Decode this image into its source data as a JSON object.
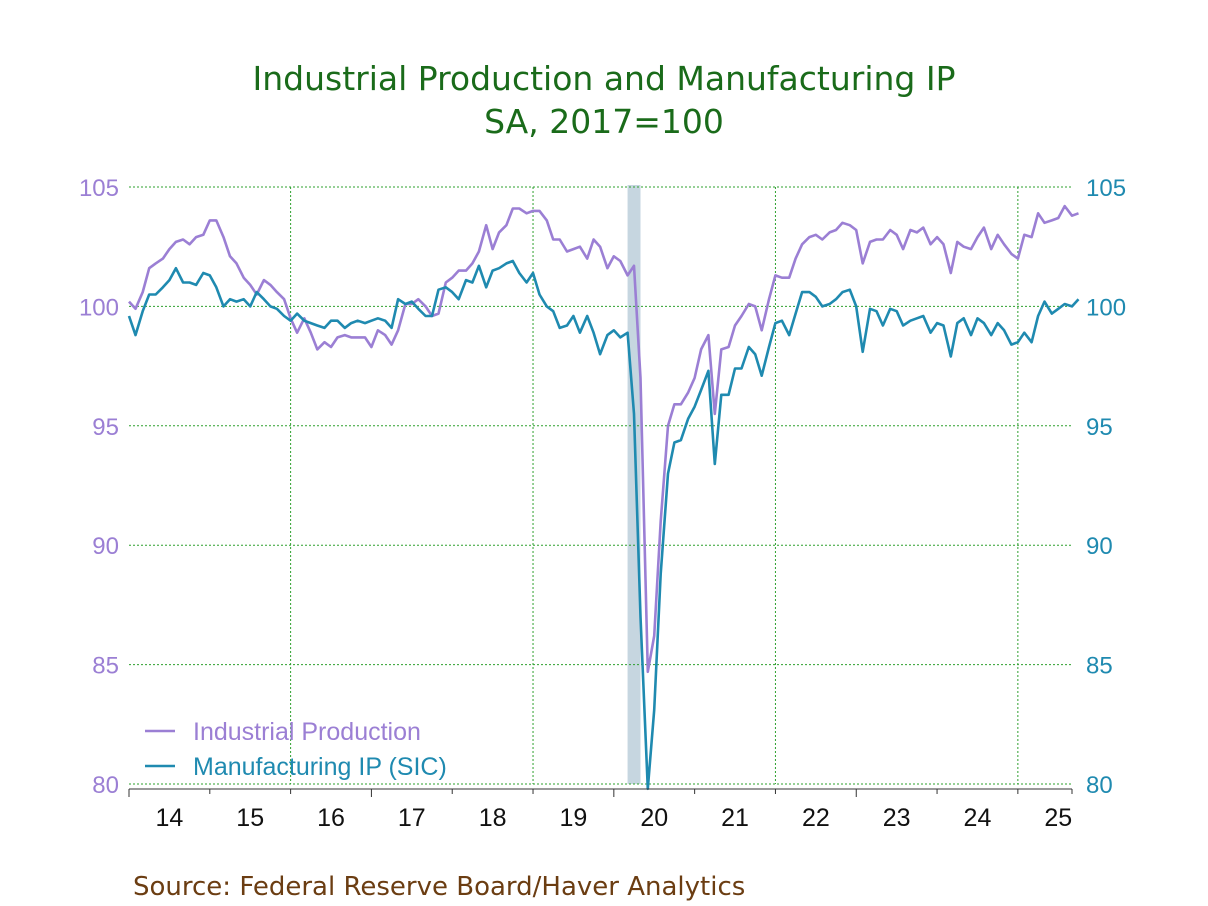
{
  "chart_data": {
    "type": "line",
    "title": "Industrial Production and Manufacturing IP",
    "subtitle": "SA, 2017=100",
    "source": "Source:  Federal Reserve Board/Haver Analytics",
    "xlim": [
      2014.0,
      2025.67
    ],
    "ylim": [
      80,
      105
    ],
    "y_ticks": [
      "80",
      "85",
      "90",
      "95",
      "100",
      "105"
    ],
    "x_ticks": [
      "14",
      "15",
      "16",
      "17",
      "18",
      "19",
      "20",
      "21",
      "22",
      "23",
      "24",
      "25"
    ],
    "grid": true,
    "legend_position": "bottom-left",
    "recession": {
      "start": 2020.17,
      "end": 2020.33
    },
    "colors": {
      "ip": "#9b7fd4",
      "mfg": "#1f8ab0",
      "grid": "#2ea02e",
      "recession": "#c6d6e0"
    },
    "series": [
      {
        "name": "Industrial Production",
        "key": "ip",
        "points": [
          [
            2014.0,
            100.2
          ],
          [
            2014.08,
            99.9
          ],
          [
            2014.17,
            100.6
          ],
          [
            2014.25,
            101.6
          ],
          [
            2014.33,
            101.8
          ],
          [
            2014.42,
            102.0
          ],
          [
            2014.5,
            102.4
          ],
          [
            2014.58,
            102.7
          ],
          [
            2014.67,
            102.8
          ],
          [
            2014.75,
            102.6
          ],
          [
            2014.83,
            102.9
          ],
          [
            2014.92,
            103.0
          ],
          [
            2015.0,
            103.6
          ],
          [
            2015.08,
            103.6
          ],
          [
            2015.17,
            102.9
          ],
          [
            2015.25,
            102.1
          ],
          [
            2015.33,
            101.8
          ],
          [
            2015.42,
            101.2
          ],
          [
            2015.5,
            100.9
          ],
          [
            2015.58,
            100.5
          ],
          [
            2015.67,
            101.1
          ],
          [
            2015.75,
            100.9
          ],
          [
            2015.83,
            100.6
          ],
          [
            2015.92,
            100.3
          ],
          [
            2016.0,
            99.5
          ],
          [
            2016.08,
            98.9
          ],
          [
            2016.17,
            99.5
          ],
          [
            2016.25,
            98.9
          ],
          [
            2016.33,
            98.2
          ],
          [
            2016.42,
            98.5
          ],
          [
            2016.5,
            98.3
          ],
          [
            2016.58,
            98.7
          ],
          [
            2016.67,
            98.8
          ],
          [
            2016.75,
            98.7
          ],
          [
            2016.83,
            98.7
          ],
          [
            2016.92,
            98.7
          ],
          [
            2017.0,
            98.3
          ],
          [
            2017.08,
            99.0
          ],
          [
            2017.17,
            98.8
          ],
          [
            2017.25,
            98.4
          ],
          [
            2017.33,
            99.0
          ],
          [
            2017.42,
            100.1
          ],
          [
            2017.5,
            100.1
          ],
          [
            2017.58,
            100.3
          ],
          [
            2017.67,
            100.0
          ],
          [
            2017.75,
            99.6
          ],
          [
            2017.83,
            99.7
          ],
          [
            2017.92,
            101.0
          ],
          [
            2018.0,
            101.2
          ],
          [
            2018.08,
            101.5
          ],
          [
            2018.17,
            101.5
          ],
          [
            2018.25,
            101.8
          ],
          [
            2018.33,
            102.3
          ],
          [
            2018.42,
            103.4
          ],
          [
            2018.5,
            102.4
          ],
          [
            2018.58,
            103.1
          ],
          [
            2018.67,
            103.4
          ],
          [
            2018.75,
            104.1
          ],
          [
            2018.83,
            104.1
          ],
          [
            2018.92,
            103.9
          ],
          [
            2019.0,
            104.0
          ],
          [
            2019.08,
            104.0
          ],
          [
            2019.17,
            103.6
          ],
          [
            2019.25,
            102.8
          ],
          [
            2019.33,
            102.8
          ],
          [
            2019.42,
            102.3
          ],
          [
            2019.5,
            102.4
          ],
          [
            2019.58,
            102.5
          ],
          [
            2019.67,
            102.0
          ],
          [
            2019.75,
            102.8
          ],
          [
            2019.83,
            102.5
          ],
          [
            2019.92,
            101.6
          ],
          [
            2020.0,
            102.1
          ],
          [
            2020.08,
            101.9
          ],
          [
            2020.17,
            101.3
          ],
          [
            2020.25,
            101.7
          ],
          [
            2020.33,
            97.0
          ],
          [
            2020.42,
            84.7
          ],
          [
            2020.5,
            86.2
          ],
          [
            2020.58,
            91.0
          ],
          [
            2020.67,
            95.0
          ],
          [
            2020.75,
            95.9
          ],
          [
            2020.83,
            95.9
          ],
          [
            2020.92,
            96.4
          ],
          [
            2021.0,
            97.0
          ],
          [
            2021.08,
            98.2
          ],
          [
            2021.17,
            98.8
          ],
          [
            2021.25,
            95.5
          ],
          [
            2021.33,
            98.2
          ],
          [
            2021.42,
            98.3
          ],
          [
            2021.5,
            99.2
          ],
          [
            2021.58,
            99.6
          ],
          [
            2021.67,
            100.1
          ],
          [
            2021.75,
            100.0
          ],
          [
            2021.83,
            99.0
          ],
          [
            2021.92,
            100.3
          ],
          [
            2022.0,
            101.3
          ],
          [
            2022.08,
            101.2
          ],
          [
            2022.17,
            101.2
          ],
          [
            2022.25,
            102.0
          ],
          [
            2022.33,
            102.6
          ],
          [
            2022.42,
            102.9
          ],
          [
            2022.5,
            103.0
          ],
          [
            2022.58,
            102.8
          ],
          [
            2022.67,
            103.1
          ],
          [
            2022.75,
            103.2
          ],
          [
            2022.83,
            103.5
          ],
          [
            2022.92,
            103.4
          ],
          [
            2023.0,
            103.2
          ],
          [
            2023.08,
            101.8
          ],
          [
            2023.17,
            102.7
          ],
          [
            2023.25,
            102.8
          ],
          [
            2023.33,
            102.8
          ],
          [
            2023.42,
            103.2
          ],
          [
            2023.5,
            103.0
          ],
          [
            2023.58,
            102.4
          ],
          [
            2023.67,
            103.2
          ],
          [
            2023.75,
            103.1
          ],
          [
            2023.83,
            103.3
          ],
          [
            2023.92,
            102.6
          ],
          [
            2024.0,
            102.9
          ],
          [
            2024.08,
            102.6
          ],
          [
            2024.17,
            101.4
          ],
          [
            2024.25,
            102.7
          ],
          [
            2024.33,
            102.5
          ],
          [
            2024.42,
            102.4
          ],
          [
            2024.5,
            102.9
          ],
          [
            2024.58,
            103.3
          ],
          [
            2024.67,
            102.4
          ],
          [
            2024.75,
            103.0
          ],
          [
            2024.83,
            102.6
          ],
          [
            2024.92,
            102.2
          ],
          [
            2025.0,
            102.0
          ],
          [
            2025.08,
            103.0
          ],
          [
            2025.17,
            102.9
          ],
          [
            2025.25,
            103.9
          ],
          [
            2025.33,
            103.5
          ],
          [
            2025.42,
            103.6
          ],
          [
            2025.5,
            103.7
          ],
          [
            2025.58,
            104.2
          ],
          [
            2025.67,
            103.8
          ],
          [
            2025.75,
            103.9
          ]
        ]
      },
      {
        "name": "Manufacturing IP (SIC)",
        "key": "mfg",
        "points": [
          [
            2014.0,
            99.6
          ],
          [
            2014.08,
            98.8
          ],
          [
            2014.17,
            99.8
          ],
          [
            2014.25,
            100.5
          ],
          [
            2014.33,
            100.5
          ],
          [
            2014.42,
            100.8
          ],
          [
            2014.5,
            101.1
          ],
          [
            2014.58,
            101.6
          ],
          [
            2014.67,
            101.0
          ],
          [
            2014.75,
            101.0
          ],
          [
            2014.83,
            100.9
          ],
          [
            2014.92,
            101.4
          ],
          [
            2015.0,
            101.3
          ],
          [
            2015.08,
            100.8
          ],
          [
            2015.17,
            100.0
          ],
          [
            2015.25,
            100.3
          ],
          [
            2015.33,
            100.2
          ],
          [
            2015.42,
            100.3
          ],
          [
            2015.5,
            100.0
          ],
          [
            2015.58,
            100.6
          ],
          [
            2015.67,
            100.3
          ],
          [
            2015.75,
            100.0
          ],
          [
            2015.83,
            99.9
          ],
          [
            2015.92,
            99.6
          ],
          [
            2016.0,
            99.4
          ],
          [
            2016.08,
            99.7
          ],
          [
            2016.17,
            99.4
          ],
          [
            2016.25,
            99.3
          ],
          [
            2016.33,
            99.2
          ],
          [
            2016.42,
            99.1
          ],
          [
            2016.5,
            99.4
          ],
          [
            2016.58,
            99.4
          ],
          [
            2016.67,
            99.1
          ],
          [
            2016.75,
            99.3
          ],
          [
            2016.83,
            99.4
          ],
          [
            2016.92,
            99.3
          ],
          [
            2017.0,
            99.4
          ],
          [
            2017.08,
            99.5
          ],
          [
            2017.17,
            99.4
          ],
          [
            2017.25,
            99.1
          ],
          [
            2017.33,
            100.3
          ],
          [
            2017.42,
            100.1
          ],
          [
            2017.5,
            100.2
          ],
          [
            2017.58,
            99.9
          ],
          [
            2017.67,
            99.6
          ],
          [
            2017.75,
            99.6
          ],
          [
            2017.83,
            100.7
          ],
          [
            2017.92,
            100.8
          ],
          [
            2018.0,
            100.6
          ],
          [
            2018.08,
            100.3
          ],
          [
            2018.17,
            101.1
          ],
          [
            2018.25,
            101.0
          ],
          [
            2018.33,
            101.7
          ],
          [
            2018.42,
            100.8
          ],
          [
            2018.5,
            101.5
          ],
          [
            2018.58,
            101.6
          ],
          [
            2018.67,
            101.8
          ],
          [
            2018.75,
            101.9
          ],
          [
            2018.83,
            101.4
          ],
          [
            2018.92,
            101.0
          ],
          [
            2019.0,
            101.4
          ],
          [
            2019.08,
            100.5
          ],
          [
            2019.17,
            100.0
          ],
          [
            2019.25,
            99.8
          ],
          [
            2019.33,
            99.1
          ],
          [
            2019.42,
            99.2
          ],
          [
            2019.5,
            99.6
          ],
          [
            2019.58,
            98.9
          ],
          [
            2019.67,
            99.6
          ],
          [
            2019.75,
            98.9
          ],
          [
            2019.83,
            98.0
          ],
          [
            2019.92,
            98.8
          ],
          [
            2020.0,
            99.0
          ],
          [
            2020.08,
            98.7
          ],
          [
            2020.17,
            98.9
          ],
          [
            2020.25,
            95.5
          ],
          [
            2020.33,
            87.0
          ],
          [
            2020.42,
            79.8
          ],
          [
            2020.5,
            83.1
          ],
          [
            2020.58,
            88.8
          ],
          [
            2020.67,
            93.0
          ],
          [
            2020.75,
            94.3
          ],
          [
            2020.83,
            94.4
          ],
          [
            2020.92,
            95.3
          ],
          [
            2021.0,
            95.8
          ],
          [
            2021.08,
            96.5
          ],
          [
            2021.17,
            97.3
          ],
          [
            2021.25,
            93.4
          ],
          [
            2021.33,
            96.3
          ],
          [
            2021.42,
            96.3
          ],
          [
            2021.5,
            97.4
          ],
          [
            2021.58,
            97.4
          ],
          [
            2021.67,
            98.3
          ],
          [
            2021.75,
            98.0
          ],
          [
            2021.83,
            97.1
          ],
          [
            2021.92,
            98.3
          ],
          [
            2022.0,
            99.3
          ],
          [
            2022.08,
            99.4
          ],
          [
            2022.17,
            98.8
          ],
          [
            2022.25,
            99.7
          ],
          [
            2022.33,
            100.6
          ],
          [
            2022.42,
            100.6
          ],
          [
            2022.5,
            100.4
          ],
          [
            2022.58,
            100.0
          ],
          [
            2022.67,
            100.1
          ],
          [
            2022.75,
            100.3
          ],
          [
            2022.83,
            100.6
          ],
          [
            2022.92,
            100.7
          ],
          [
            2023.0,
            100.0
          ],
          [
            2023.08,
            98.1
          ],
          [
            2023.17,
            99.9
          ],
          [
            2023.25,
            99.8
          ],
          [
            2023.33,
            99.2
          ],
          [
            2023.42,
            99.9
          ],
          [
            2023.5,
            99.8
          ],
          [
            2023.58,
            99.2
          ],
          [
            2023.67,
            99.4
          ],
          [
            2023.75,
            99.5
          ],
          [
            2023.83,
            99.6
          ],
          [
            2023.92,
            98.9
          ],
          [
            2024.0,
            99.3
          ],
          [
            2024.08,
            99.2
          ],
          [
            2024.17,
            97.9
          ],
          [
            2024.25,
            99.3
          ],
          [
            2024.33,
            99.5
          ],
          [
            2024.42,
            98.8
          ],
          [
            2024.5,
            99.5
          ],
          [
            2024.58,
            99.3
          ],
          [
            2024.67,
            98.8
          ],
          [
            2024.75,
            99.3
          ],
          [
            2024.83,
            99.0
          ],
          [
            2024.92,
            98.4
          ],
          [
            2025.0,
            98.5
          ],
          [
            2025.08,
            98.9
          ],
          [
            2025.17,
            98.5
          ],
          [
            2025.25,
            99.6
          ],
          [
            2025.33,
            100.2
          ],
          [
            2025.42,
            99.7
          ],
          [
            2025.5,
            99.9
          ],
          [
            2025.58,
            100.1
          ],
          [
            2025.67,
            100.0
          ],
          [
            2025.75,
            100.3
          ]
        ]
      }
    ]
  }
}
